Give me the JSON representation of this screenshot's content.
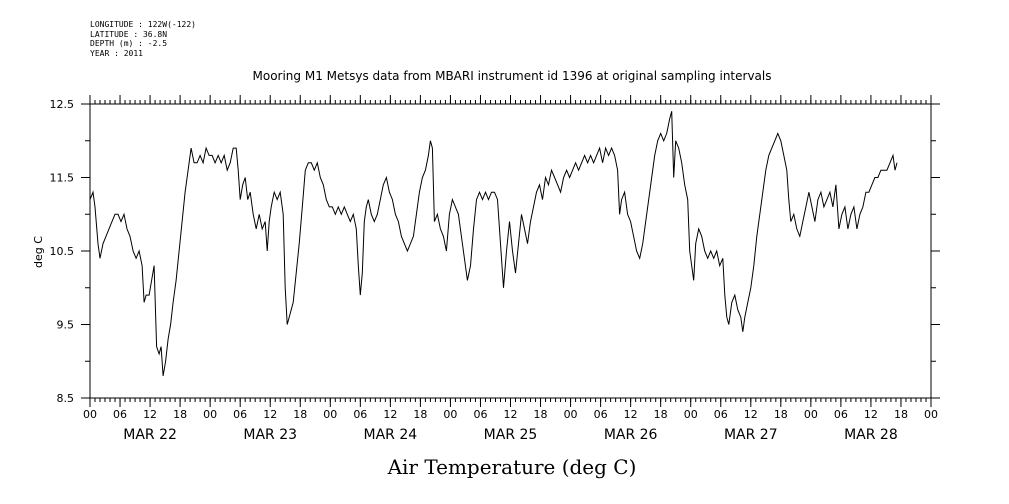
{
  "metadata": {
    "longitude": "LONGITUDE : 122W(-122)",
    "latitude": "LATITUDE : 36.8N",
    "depth": "DEPTH (m) : -2.5",
    "year": "YEAR : 2011"
  },
  "chart_data": {
    "type": "line",
    "title": "Mooring M1 Metsys data from MBARI instrument id 1396 at original sampling intervals",
    "xlabel": "Air Temperature (deg C)",
    "ylabel": "deg C",
    "ylim": [
      8.5,
      12.5
    ],
    "yticks": [
      8.5,
      9.5,
      10.5,
      11.5,
      12.5
    ],
    "xlim_hours": [
      0,
      168
    ],
    "x_tick_labels": [
      "00",
      "06",
      "12",
      "18",
      "00",
      "06",
      "12",
      "18",
      "00",
      "06",
      "12",
      "18",
      "00",
      "06",
      "12",
      "18",
      "00",
      "06",
      "12",
      "18",
      "00",
      "06",
      "12",
      "18",
      "00",
      "06",
      "12",
      "18",
      "00"
    ],
    "day_labels": [
      "MAR 22",
      "MAR 23",
      "MAR 24",
      "MAR 25",
      "MAR 26",
      "MAR 27",
      "MAR 28"
    ],
    "grid": false,
    "series": [
      {
        "points": [
          [
            0.0,
            11.2
          ],
          [
            0.6,
            11.3
          ],
          [
            1.0,
            11.1
          ],
          [
            1.6,
            10.6
          ],
          [
            2.0,
            10.4
          ],
          [
            2.6,
            10.6
          ],
          [
            3.2,
            10.7
          ],
          [
            3.8,
            10.8
          ],
          [
            4.4,
            10.9
          ],
          [
            5.0,
            11.0
          ],
          [
            5.6,
            11.0
          ],
          [
            6.2,
            10.9
          ],
          [
            6.8,
            11.0
          ],
          [
            7.4,
            10.8
          ],
          [
            8.0,
            10.7
          ],
          [
            8.6,
            10.5
          ],
          [
            9.2,
            10.4
          ],
          [
            9.8,
            10.5
          ],
          [
            10.4,
            10.3
          ],
          [
            10.8,
            9.8
          ],
          [
            11.2,
            9.9
          ],
          [
            11.8,
            9.9
          ],
          [
            12.3,
            10.1
          ],
          [
            12.8,
            10.3
          ],
          [
            13.3,
            9.2
          ],
          [
            13.8,
            9.1
          ],
          [
            14.2,
            9.2
          ],
          [
            14.6,
            8.8
          ],
          [
            15.1,
            9.0
          ],
          [
            15.6,
            9.3
          ],
          [
            16.1,
            9.5
          ],
          [
            16.6,
            9.8
          ],
          [
            17.2,
            10.1
          ],
          [
            17.8,
            10.5
          ],
          [
            18.4,
            10.9
          ],
          [
            19.0,
            11.3
          ],
          [
            19.6,
            11.6
          ],
          [
            20.2,
            11.9
          ],
          [
            20.8,
            11.7
          ],
          [
            21.4,
            11.7
          ],
          [
            22.0,
            11.8
          ],
          [
            22.6,
            11.7
          ],
          [
            23.2,
            11.9
          ],
          [
            23.8,
            11.8
          ],
          [
            24.4,
            11.8
          ],
          [
            25.0,
            11.7
          ],
          [
            25.6,
            11.8
          ],
          [
            26.2,
            11.7
          ],
          [
            26.8,
            11.8
          ],
          [
            27.4,
            11.6
          ],
          [
            28.0,
            11.7
          ],
          [
            28.6,
            11.9
          ],
          [
            29.2,
            11.9
          ],
          [
            29.6,
            11.6
          ],
          [
            30.0,
            11.2
          ],
          [
            30.5,
            11.4
          ],
          [
            31.0,
            11.5
          ],
          [
            31.5,
            11.2
          ],
          [
            32.0,
            11.3
          ],
          [
            32.6,
            11.0
          ],
          [
            33.2,
            10.8
          ],
          [
            33.8,
            11.0
          ],
          [
            34.4,
            10.8
          ],
          [
            35.0,
            10.9
          ],
          [
            35.4,
            10.5
          ],
          [
            35.8,
            10.9
          ],
          [
            36.2,
            11.1
          ],
          [
            36.8,
            11.3
          ],
          [
            37.4,
            11.2
          ],
          [
            38.0,
            11.3
          ],
          [
            38.6,
            11.0
          ],
          [
            39.0,
            10.0
          ],
          [
            39.4,
            9.5
          ],
          [
            39.8,
            9.6
          ],
          [
            40.2,
            9.7
          ],
          [
            40.6,
            9.8
          ],
          [
            41.2,
            10.2
          ],
          [
            41.8,
            10.6
          ],
          [
            42.4,
            11.1
          ],
          [
            43.0,
            11.6
          ],
          [
            43.6,
            11.7
          ],
          [
            44.2,
            11.7
          ],
          [
            44.8,
            11.6
          ],
          [
            45.4,
            11.7
          ],
          [
            46.0,
            11.5
          ],
          [
            46.6,
            11.4
          ],
          [
            47.2,
            11.2
          ],
          [
            47.8,
            11.1
          ],
          [
            48.4,
            11.1
          ],
          [
            49.0,
            11.0
          ],
          [
            49.6,
            11.1
          ],
          [
            50.2,
            11.0
          ],
          [
            50.8,
            11.1
          ],
          [
            51.4,
            11.0
          ],
          [
            52.0,
            10.9
          ],
          [
            52.6,
            11.0
          ],
          [
            53.2,
            10.8
          ],
          [
            53.6,
            10.3
          ],
          [
            54.0,
            9.9
          ],
          [
            54.4,
            10.2
          ],
          [
            54.8,
            10.9
          ],
          [
            55.2,
            11.1
          ],
          [
            55.6,
            11.2
          ],
          [
            56.2,
            11.0
          ],
          [
            56.8,
            10.9
          ],
          [
            57.4,
            11.0
          ],
          [
            58.0,
            11.2
          ],
          [
            58.6,
            11.4
          ],
          [
            59.2,
            11.5
          ],
          [
            59.8,
            11.3
          ],
          [
            60.4,
            11.2
          ],
          [
            61.0,
            11.0
          ],
          [
            61.6,
            10.9
          ],
          [
            62.2,
            10.7
          ],
          [
            62.8,
            10.6
          ],
          [
            63.4,
            10.5
          ],
          [
            64.0,
            10.6
          ],
          [
            64.6,
            10.7
          ],
          [
            65.2,
            11.0
          ],
          [
            65.8,
            11.3
          ],
          [
            66.4,
            11.5
          ],
          [
            67.0,
            11.6
          ],
          [
            67.6,
            11.8
          ],
          [
            68.0,
            12.0
          ],
          [
            68.4,
            11.9
          ],
          [
            68.8,
            10.9
          ],
          [
            69.4,
            11.0
          ],
          [
            70.0,
            10.8
          ],
          [
            70.6,
            10.7
          ],
          [
            71.2,
            10.5
          ],
          [
            71.8,
            11.0
          ],
          [
            72.4,
            11.2
          ],
          [
            73.0,
            11.1
          ],
          [
            73.6,
            11.0
          ],
          [
            74.2,
            10.7
          ],
          [
            74.8,
            10.4
          ],
          [
            75.4,
            10.1
          ],
          [
            76.0,
            10.3
          ],
          [
            76.6,
            10.8
          ],
          [
            77.2,
            11.2
          ],
          [
            77.8,
            11.3
          ],
          [
            78.4,
            11.2
          ],
          [
            79.0,
            11.3
          ],
          [
            79.6,
            11.2
          ],
          [
            80.2,
            11.3
          ],
          [
            80.8,
            11.3
          ],
          [
            81.4,
            11.2
          ],
          [
            82.0,
            10.6
          ],
          [
            82.6,
            10.0
          ],
          [
            83.2,
            10.5
          ],
          [
            83.8,
            10.9
          ],
          [
            84.4,
            10.5
          ],
          [
            85.0,
            10.2
          ],
          [
            85.6,
            10.6
          ],
          [
            86.2,
            11.0
          ],
          [
            86.8,
            10.8
          ],
          [
            87.4,
            10.6
          ],
          [
            88.0,
            10.9
          ],
          [
            88.6,
            11.1
          ],
          [
            89.2,
            11.3
          ],
          [
            89.8,
            11.4
          ],
          [
            90.4,
            11.2
          ],
          [
            91.0,
            11.5
          ],
          [
            91.6,
            11.4
          ],
          [
            92.2,
            11.6
          ],
          [
            92.8,
            11.5
          ],
          [
            93.4,
            11.4
          ],
          [
            94.0,
            11.3
          ],
          [
            94.6,
            11.5
          ],
          [
            95.2,
            11.6
          ],
          [
            95.8,
            11.5
          ],
          [
            96.4,
            11.6
          ],
          [
            97.0,
            11.7
          ],
          [
            97.6,
            11.6
          ],
          [
            98.2,
            11.7
          ],
          [
            98.8,
            11.8
          ],
          [
            99.4,
            11.7
          ],
          [
            100.0,
            11.8
          ],
          [
            100.6,
            11.7
          ],
          [
            101.2,
            11.8
          ],
          [
            101.8,
            11.9
          ],
          [
            102.4,
            11.7
          ],
          [
            103.0,
            11.9
          ],
          [
            103.6,
            11.8
          ],
          [
            104.2,
            11.9
          ],
          [
            104.8,
            11.8
          ],
          [
            105.4,
            11.6
          ],
          [
            105.8,
            11.0
          ],
          [
            106.2,
            11.2
          ],
          [
            106.8,
            11.3
          ],
          [
            107.4,
            11.0
          ],
          [
            108.0,
            10.9
          ],
          [
            108.6,
            10.7
          ],
          [
            109.2,
            10.5
          ],
          [
            109.8,
            10.4
          ],
          [
            110.4,
            10.6
          ],
          [
            111.0,
            10.9
          ],
          [
            111.6,
            11.2
          ],
          [
            112.2,
            11.5
          ],
          [
            112.8,
            11.8
          ],
          [
            113.4,
            12.0
          ],
          [
            114.0,
            12.1
          ],
          [
            114.6,
            12.0
          ],
          [
            115.2,
            12.1
          ],
          [
            115.8,
            12.3
          ],
          [
            116.2,
            12.4
          ],
          [
            116.6,
            11.5
          ],
          [
            117.0,
            12.0
          ],
          [
            117.6,
            11.9
          ],
          [
            118.2,
            11.7
          ],
          [
            118.8,
            11.4
          ],
          [
            119.4,
            11.2
          ],
          [
            119.8,
            10.5
          ],
          [
            120.2,
            10.3
          ],
          [
            120.6,
            10.1
          ],
          [
            121.0,
            10.6
          ],
          [
            121.6,
            10.8
          ],
          [
            122.2,
            10.7
          ],
          [
            122.8,
            10.5
          ],
          [
            123.4,
            10.4
          ],
          [
            124.0,
            10.5
          ],
          [
            124.6,
            10.4
          ],
          [
            125.2,
            10.5
          ],
          [
            125.8,
            10.3
          ],
          [
            126.4,
            10.4
          ],
          [
            126.8,
            9.9
          ],
          [
            127.2,
            9.6
          ],
          [
            127.6,
            9.5
          ],
          [
            128.2,
            9.8
          ],
          [
            128.8,
            9.9
          ],
          [
            129.4,
            9.7
          ],
          [
            130.0,
            9.6
          ],
          [
            130.4,
            9.4
          ],
          [
            130.8,
            9.6
          ],
          [
            131.4,
            9.8
          ],
          [
            132.0,
            10.0
          ],
          [
            132.6,
            10.3
          ],
          [
            133.2,
            10.7
          ],
          [
            133.8,
            11.0
          ],
          [
            134.4,
            11.3
          ],
          [
            135.0,
            11.6
          ],
          [
            135.6,
            11.8
          ],
          [
            136.2,
            11.9
          ],
          [
            136.8,
            12.0
          ],
          [
            137.4,
            12.1
          ],
          [
            138.0,
            12.0
          ],
          [
            138.6,
            11.8
          ],
          [
            139.2,
            11.6
          ],
          [
            139.6,
            11.2
          ],
          [
            140.0,
            10.9
          ],
          [
            140.6,
            11.0
          ],
          [
            141.2,
            10.8
          ],
          [
            141.8,
            10.7
          ],
          [
            142.4,
            10.9
          ],
          [
            143.0,
            11.1
          ],
          [
            143.6,
            11.3
          ],
          [
            144.2,
            11.1
          ],
          [
            144.8,
            10.9
          ],
          [
            145.4,
            11.2
          ],
          [
            146.0,
            11.3
          ],
          [
            146.6,
            11.1
          ],
          [
            147.2,
            11.2
          ],
          [
            147.8,
            11.3
          ],
          [
            148.4,
            11.1
          ],
          [
            149.0,
            11.4
          ],
          [
            149.6,
            10.8
          ],
          [
            150.2,
            11.0
          ],
          [
            150.8,
            11.1
          ],
          [
            151.4,
            10.8
          ],
          [
            152.0,
            11.0
          ],
          [
            152.6,
            11.1
          ],
          [
            153.2,
            10.8
          ],
          [
            153.8,
            11.0
          ],
          [
            154.4,
            11.1
          ],
          [
            155.0,
            11.3
          ],
          [
            155.6,
            11.3
          ],
          [
            156.2,
            11.4
          ],
          [
            156.8,
            11.5
          ],
          [
            157.4,
            11.5
          ],
          [
            158.0,
            11.6
          ],
          [
            158.6,
            11.6
          ],
          [
            159.2,
            11.6
          ],
          [
            159.8,
            11.7
          ],
          [
            160.4,
            11.8
          ],
          [
            160.8,
            11.6
          ],
          [
            161.2,
            11.7
          ]
        ]
      }
    ]
  }
}
